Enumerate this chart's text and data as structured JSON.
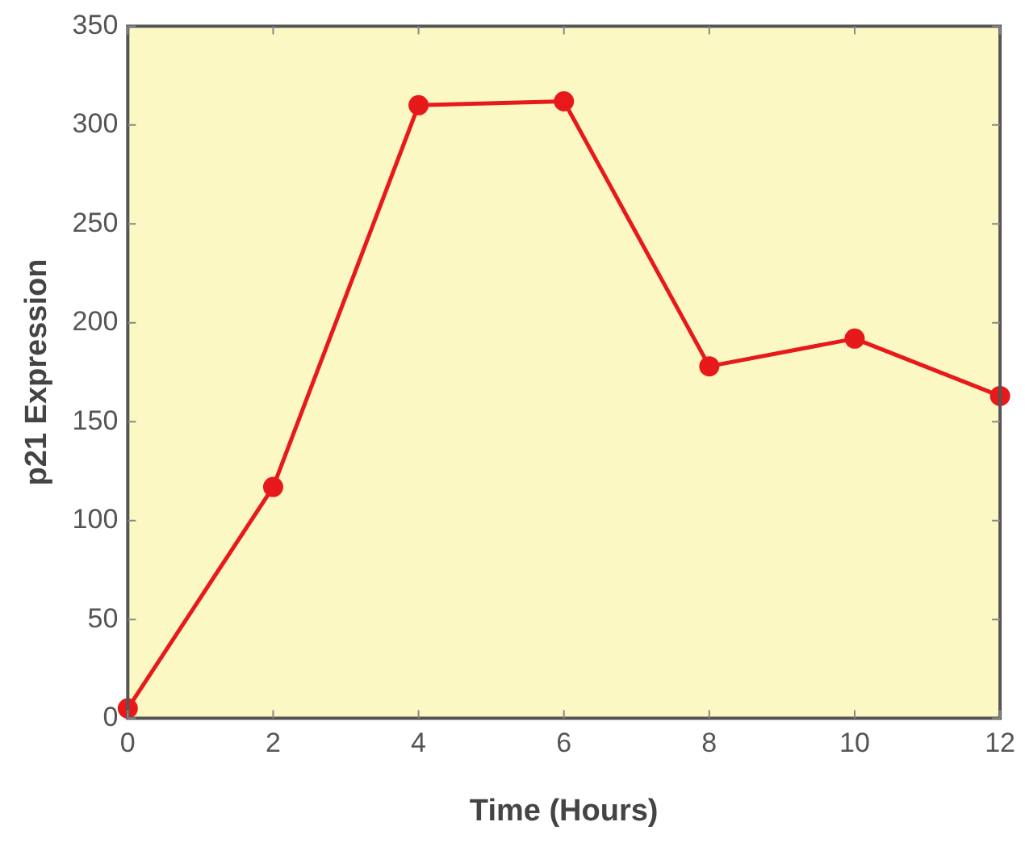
{
  "chart_data": {
    "type": "line",
    "xlabel": "Time (Hours)",
    "ylabel": "p21 Expression",
    "x": [
      0,
      2,
      4,
      6,
      8,
      10,
      12
    ],
    "series": [
      {
        "color": "#e8191b",
        "values": [
          5,
          117,
          310,
          312,
          178,
          192,
          163
        ]
      }
    ],
    "xlim": [
      0,
      12
    ],
    "xticks": [
      0,
      2,
      4,
      6,
      8,
      10,
      12
    ],
    "ylim": [
      0,
      350
    ],
    "yticks": [
      0,
      50,
      100,
      150,
      200,
      250,
      300,
      350
    ],
    "grid": false,
    "legend": false,
    "marker": "circle",
    "line_style": "solid"
  }
}
